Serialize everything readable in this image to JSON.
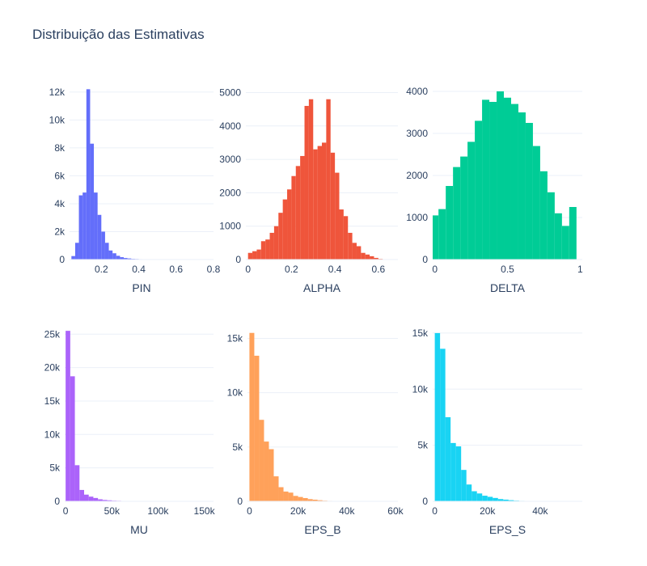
{
  "title": "Distribuição das Estimativas",
  "chart_data": [
    {
      "type": "bar",
      "xlabel": "PIN",
      "color": "#636efa",
      "xlim": [
        0.03,
        0.8
      ],
      "ylim": [
        0,
        12800
      ],
      "xticks": [
        {
          "v": 0.2,
          "label": "0.2"
        },
        {
          "v": 0.4,
          "label": "0.4"
        },
        {
          "v": 0.6,
          "label": "0.6"
        },
        {
          "v": 0.8,
          "label": "0.8"
        }
      ],
      "yticks": [
        {
          "v": 0,
          "label": "0"
        },
        {
          "v": 2000,
          "label": "2k"
        },
        {
          "v": 4000,
          "label": "4k"
        },
        {
          "v": 6000,
          "label": "6k"
        },
        {
          "v": 8000,
          "label": "8k"
        },
        {
          "v": 10000,
          "label": "10k"
        },
        {
          "v": 12000,
          "label": "12k"
        }
      ],
      "bin_start": 0.04,
      "bin_width": 0.02,
      "values": [
        250,
        1200,
        4600,
        4800,
        12200,
        8300,
        4800,
        3200,
        2000,
        1200,
        650,
        450,
        270,
        170,
        110,
        80,
        50,
        40,
        30,
        20,
        15,
        10,
        10,
        8,
        6,
        5,
        4,
        3,
        3,
        2,
        2,
        1,
        1,
        1,
        1,
        1,
        1,
        1
      ]
    },
    {
      "type": "bar",
      "xlabel": "ALPHA",
      "color": "#ef553b",
      "xlim": [
        -0.01,
        0.69
      ],
      "ylim": [
        0,
        5350
      ],
      "xticks": [
        {
          "v": 0,
          "label": "0"
        },
        {
          "v": 0.2,
          "label": "0.2"
        },
        {
          "v": 0.4,
          "label": "0.4"
        },
        {
          "v": 0.6,
          "label": "0.6"
        }
      ],
      "yticks": [
        {
          "v": 0,
          "label": "0"
        },
        {
          "v": 1000,
          "label": "1000"
        },
        {
          "v": 2000,
          "label": "2000"
        },
        {
          "v": 3000,
          "label": "3000"
        },
        {
          "v": 4000,
          "label": "4000"
        },
        {
          "v": 5000,
          "label": "5000"
        }
      ],
      "bin_start": 0.0,
      "bin_width": 0.02,
      "values": [
        200,
        250,
        300,
        550,
        600,
        800,
        1000,
        1400,
        1800,
        2100,
        2500,
        2800,
        3100,
        4600,
        4800,
        3300,
        3400,
        3500,
        4800,
        3200,
        2600,
        1500,
        1300,
        800,
        500,
        400,
        200,
        150,
        100,
        50,
        20
      ]
    },
    {
      "type": "bar",
      "xlabel": "DELTA",
      "color": "#00cc96",
      "xlim": [
        -0.015,
        1.015
      ],
      "ylim": [
        0,
        4250
      ],
      "xticks": [
        {
          "v": 0,
          "label": "0"
        },
        {
          "v": 0.5,
          "label": "0.5"
        },
        {
          "v": 1,
          "label": "1"
        }
      ],
      "yticks": [
        {
          "v": 0,
          "label": "0"
        },
        {
          "v": 1000,
          "label": "1000"
        },
        {
          "v": 2000,
          "label": "2000"
        },
        {
          "v": 3000,
          "label": "3000"
        },
        {
          "v": 4000,
          "label": "4000"
        }
      ],
      "bin_start": -0.025,
      "bin_width": 0.05,
      "values": [
        1050,
        1200,
        1750,
        2200,
        2450,
        2800,
        3300,
        3800,
        3750,
        4000,
        3850,
        3700,
        3500,
        3250,
        2700,
        2100,
        1600,
        1100,
        800,
        1250
      ]
    },
    {
      "type": "bar",
      "xlabel": "MU",
      "color": "#ab63fa",
      "xlim": [
        -1000,
        160000
      ],
      "ylim": [
        0,
        26000
      ],
      "xticks": [
        {
          "v": 0,
          "label": "0"
        },
        {
          "v": 50000,
          "label": "50k"
        },
        {
          "v": 100000,
          "label": "100k"
        },
        {
          "v": 150000,
          "label": "150k"
        }
      ],
      "yticks": [
        {
          "v": 0,
          "label": "0"
        },
        {
          "v": 5000,
          "label": "5k"
        },
        {
          "v": 10000,
          "label": "10k"
        },
        {
          "v": 15000,
          "label": "15k"
        },
        {
          "v": 20000,
          "label": "20k"
        },
        {
          "v": 25000,
          "label": "25k"
        }
      ],
      "bin_start": 0,
      "bin_width": 5000,
      "values": [
        25500,
        18700,
        5400,
        1700,
        1000,
        700,
        500,
        300,
        200,
        150,
        100,
        80,
        60,
        50,
        40,
        30,
        20,
        15,
        10,
        10,
        8,
        6,
        5,
        4,
        3,
        3,
        2,
        2,
        1,
        1,
        1
      ]
    },
    {
      "type": "bar",
      "xlabel": "EPS_B",
      "color": "#ffa15a",
      "xlim": [
        -800,
        61000
      ],
      "ylim": [
        0,
        16000
      ],
      "xticks": [
        {
          "v": 0,
          "label": "0"
        },
        {
          "v": 20000,
          "label": "20k"
        },
        {
          "v": 40000,
          "label": "40k"
        },
        {
          "v": 60000,
          "label": "60k"
        }
      ],
      "yticks": [
        {
          "v": 0,
          "label": "0"
        },
        {
          "v": 5000,
          "label": "5k"
        },
        {
          "v": 10000,
          "label": "10k"
        },
        {
          "v": 15000,
          "label": "15k"
        }
      ],
      "bin_start": 0,
      "bin_width": 2000,
      "values": [
        15500,
        13400,
        7500,
        5500,
        4800,
        2300,
        1300,
        900,
        800,
        500,
        400,
        300,
        200,
        150,
        100,
        60,
        40,
        30,
        20,
        15,
        10,
        8,
        6,
        5,
        4,
        3,
        2,
        2,
        1,
        1
      ]
    },
    {
      "type": "bar",
      "xlabel": "EPS_S",
      "color": "#19d3f3",
      "xlim": [
        -800,
        56000
      ],
      "ylim": [
        0,
        15500
      ],
      "xticks": [
        {
          "v": 0,
          "label": "0"
        },
        {
          "v": 20000,
          "label": "20k"
        },
        {
          "v": 40000,
          "label": "40k"
        }
      ],
      "yticks": [
        {
          "v": 0,
          "label": "0"
        },
        {
          "v": 5000,
          "label": "5k"
        },
        {
          "v": 10000,
          "label": "10k"
        },
        {
          "v": 15000,
          "label": "15k"
        }
      ],
      "bin_start": 0,
      "bin_width": 2000,
      "values": [
        15000,
        13600,
        7500,
        5200,
        4900,
        2800,
        1500,
        900,
        700,
        500,
        400,
        300,
        200,
        150,
        100,
        60,
        40,
        30,
        20,
        15,
        10,
        8,
        6,
        5,
        4,
        3,
        2,
        1
      ]
    }
  ]
}
